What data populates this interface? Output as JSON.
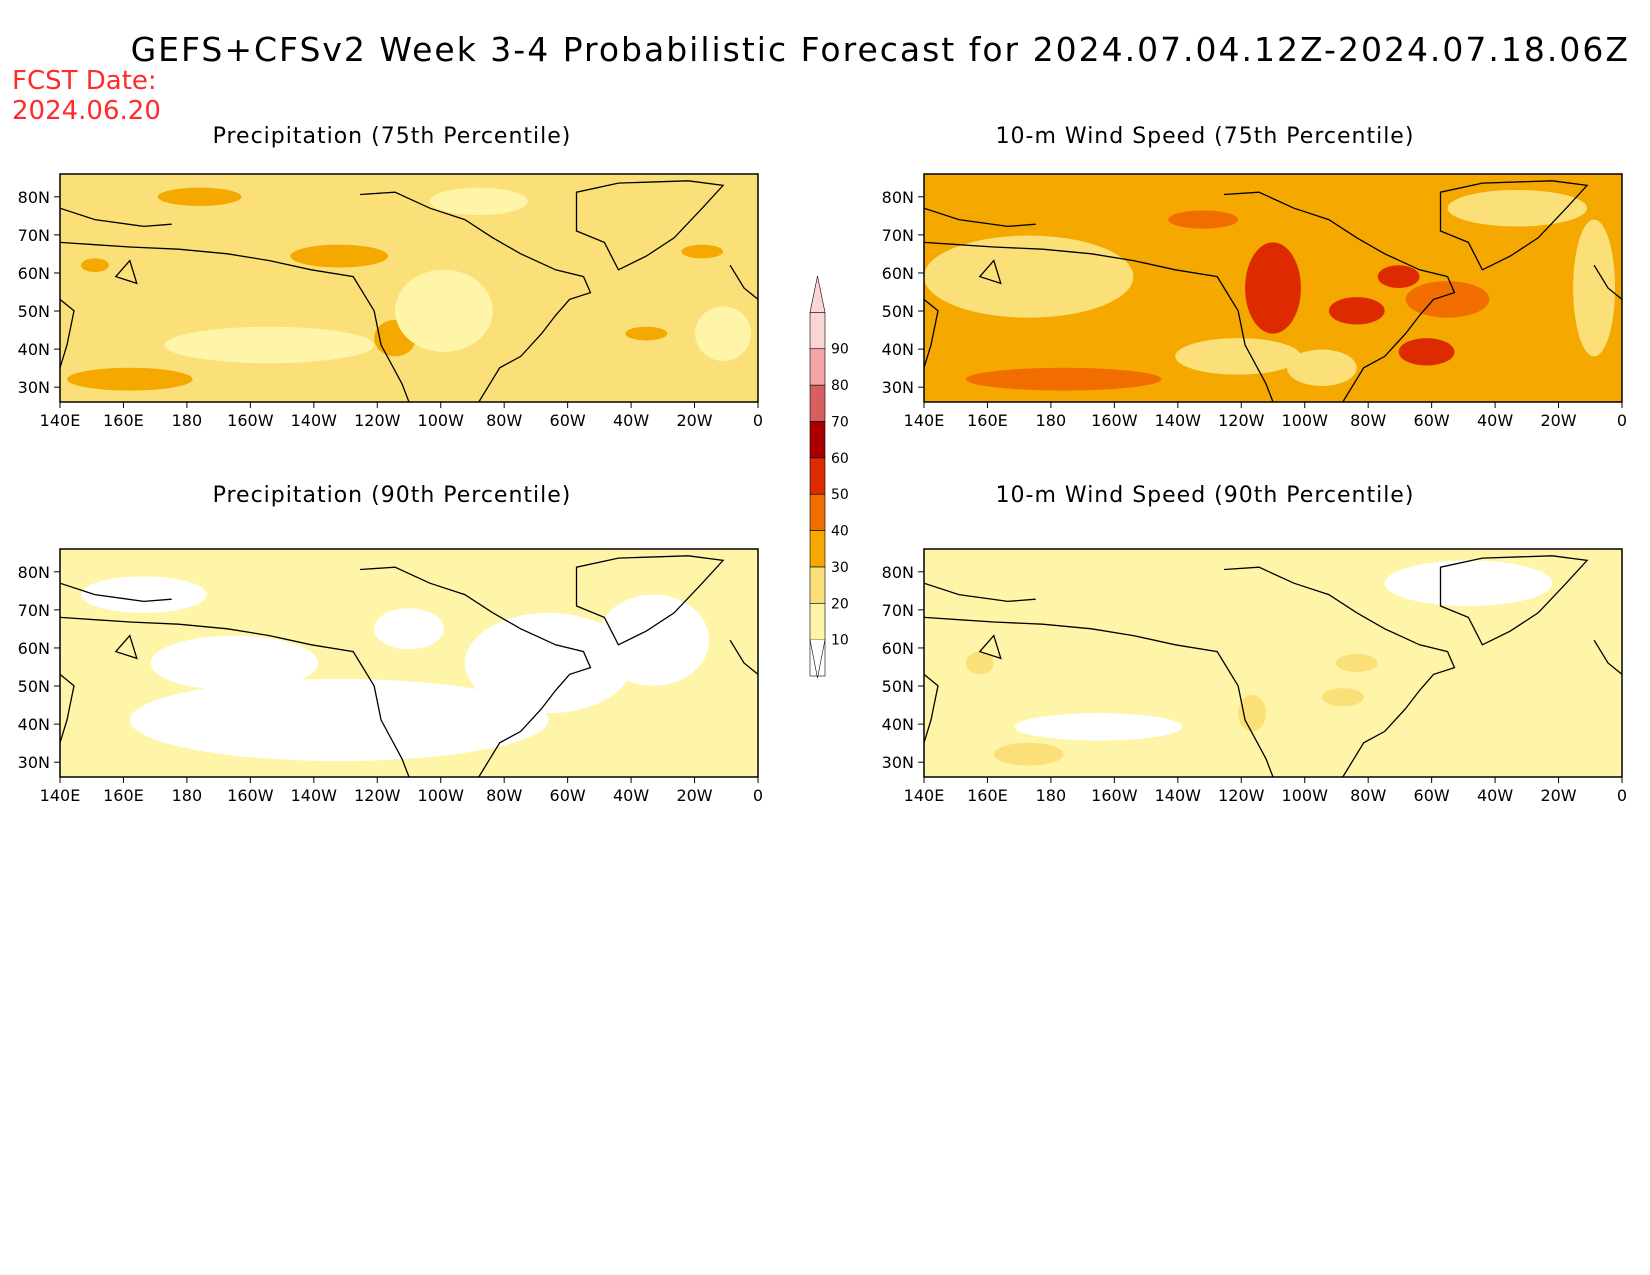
{
  "title": "GEFS+CFSv2 Week 3-4 Probabilistic Forecast for 2024.07.04.12Z-2024.07.18.06Z",
  "fcst_date_label": "FCST Date:",
  "fcst_date_value": "2024.06.20",
  "panels": [
    {
      "title": "Precipitation (75th Percentile)",
      "base_level": 20
    },
    {
      "title": "10-m Wind Speed (75th Percentile)",
      "base_level": 30
    },
    {
      "title": "Precipitation (90th Percentile)",
      "base_level": 10
    },
    {
      "title": "10-m Wind Speed (90th Percentile)",
      "base_level": 10
    }
  ],
  "lon_ticks": [
    "140E",
    "160E",
    "180",
    "160W",
    "140W",
    "120W",
    "100W",
    "80W",
    "60W",
    "40W",
    "20W",
    "0"
  ],
  "lat_ticks": [
    "80N",
    "70N",
    "60N",
    "50N",
    "40N",
    "30N"
  ],
  "colorbar": {
    "levels": [
      "10",
      "20",
      "30",
      "40",
      "50",
      "60",
      "70",
      "80",
      "90"
    ],
    "colors": [
      "#ffffff",
      "#fff5a8",
      "#fbe07a",
      "#f5a800",
      "#f26d00",
      "#dd2a00",
      "#a80000",
      "#d66060",
      "#f2a6a6",
      "#fbd4d4"
    ]
  }
}
